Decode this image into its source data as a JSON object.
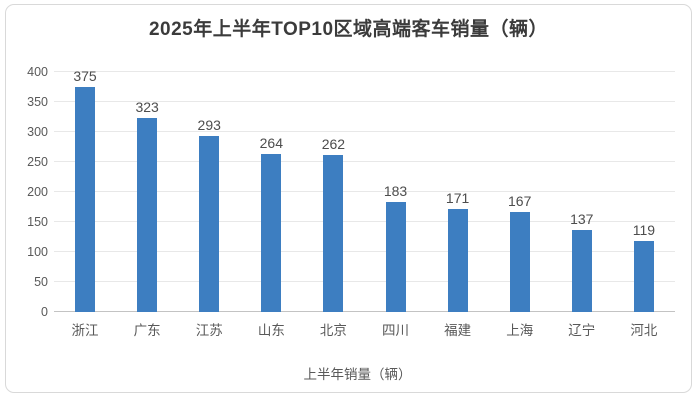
{
  "chart_data": {
    "type": "bar",
    "title": "2025年上半年TOP10区域高端客车销量（辆）",
    "categories": [
      "浙江",
      "广东",
      "江苏",
      "山东",
      "北京",
      "四川",
      "福建",
      "上海",
      "辽宁",
      "河北"
    ],
    "values": [
      375,
      323,
      293,
      264,
      262,
      183,
      171,
      167,
      137,
      119
    ],
    "series_name": "上半年销量（辆）",
    "legend_label": "上半年销量（辆）",
    "legend_position": "bottom",
    "xlabel": "",
    "ylabel": "",
    "ylim": [
      0,
      400
    ],
    "y_ticks": [
      0,
      50,
      100,
      150,
      200,
      250,
      300,
      350,
      400
    ],
    "grid": true
  },
  "colors": {
    "bar": "#3d7ec1",
    "title": "#3b3b3b",
    "tick": "#595959",
    "datalabel": "#4d4d4d",
    "gridline": "#e8e8e8",
    "axisline": "#c3c3c3",
    "border": "#d9d9d9"
  }
}
